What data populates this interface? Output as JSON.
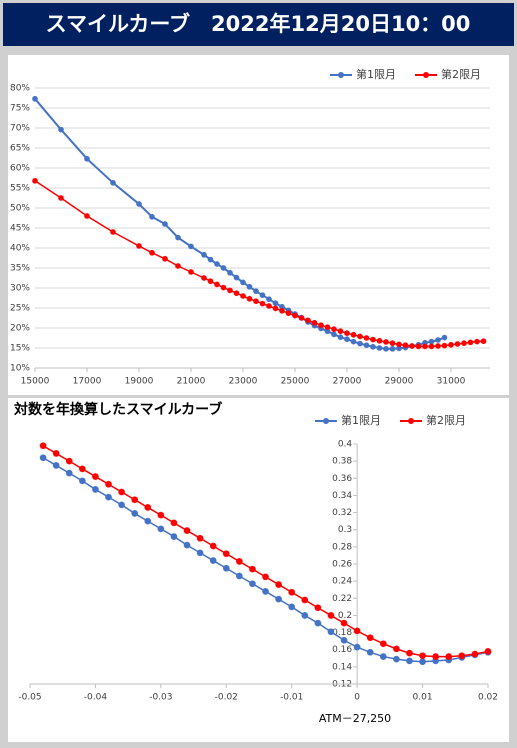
{
  "header": {
    "title": "スマイルカーブ　2022年12月20日10：00"
  },
  "chart_data": [
    {
      "type": "line",
      "legend": "top-right",
      "grid": true,
      "xlim": [
        15000,
        32500
      ],
      "xticks": [
        15000,
        17000,
        19000,
        21000,
        23000,
        25000,
        27000,
        29000,
        31000
      ],
      "ylim": [
        10,
        80
      ],
      "yticks": [
        {
          "value": 10,
          "label": "10%"
        },
        {
          "value": 15,
          "label": "15%"
        },
        {
          "value": 20,
          "label": "20%"
        },
        {
          "value": 25,
          "label": "25%"
        },
        {
          "value": 30,
          "label": "30%"
        },
        {
          "value": 35,
          "label": "35%"
        },
        {
          "value": 40,
          "label": "40%"
        },
        {
          "value": 45,
          "label": "45%"
        },
        {
          "value": 50,
          "label": "50%"
        },
        {
          "value": 55,
          "label": "55%"
        },
        {
          "value": 60,
          "label": "60%"
        },
        {
          "value": 65,
          "label": "65%"
        },
        {
          "value": 70,
          "label": "70%"
        },
        {
          "value": 75,
          "label": "75%"
        },
        {
          "value": 80,
          "label": "80%"
        }
      ],
      "series": [
        {
          "name": "第1限月",
          "color": "#4472c4",
          "x": [
            15000,
            16000,
            17000,
            18000,
            19000,
            19500,
            20000,
            20500,
            21000,
            21500,
            21750,
            22000,
            22250,
            22500,
            22750,
            23000,
            23250,
            23500,
            23750,
            24000,
            24250,
            24500,
            24750,
            25000,
            25250,
            25500,
            25750,
            26000,
            26250,
            26500,
            26750,
            27000,
            27250,
            27500,
            27750,
            28000,
            28250,
            28500,
            28750,
            29000,
            29250,
            29500,
            29750,
            30000,
            30250,
            30500,
            30750
          ],
          "values": [
            77.3,
            69.6,
            62.3,
            56.3,
            51,
            47.8,
            46,
            42.6,
            40.4,
            38.3,
            37.1,
            36,
            35,
            33.8,
            32.6,
            31.4,
            30.3,
            29.2,
            28.2,
            27.2,
            26.2,
            25.3,
            24.4,
            23.5,
            22.6,
            21.5,
            20.6,
            19.9,
            19.2,
            18.4,
            17.7,
            17.2,
            16.6,
            16.1,
            15.7,
            15.3,
            15,
            14.8,
            14.8,
            14.9,
            15.1,
            15.5,
            15.8,
            16.3,
            16.6,
            17,
            17.6
          ]
        },
        {
          "name": "第2限月",
          "color": "#ff0000",
          "x": [
            15000,
            16000,
            17000,
            18000,
            19000,
            19500,
            20000,
            20500,
            21000,
            21500,
            21750,
            22000,
            22250,
            22500,
            22750,
            23000,
            23250,
            23500,
            23750,
            24000,
            24250,
            24500,
            24750,
            25000,
            25250,
            25500,
            25750,
            26000,
            26250,
            26500,
            26750,
            27000,
            27250,
            27500,
            27750,
            28000,
            28250,
            28500,
            28750,
            29000,
            29250,
            29500,
            29750,
            30000,
            30250,
            30500,
            30750,
            31000,
            31250,
            31500,
            31750,
            32000,
            32250
          ],
          "values": [
            56.8,
            52.5,
            48,
            44,
            40.5,
            38.8,
            37.3,
            35.5,
            34,
            32.5,
            31.7,
            30.9,
            30.1,
            29.4,
            28.7,
            28,
            27.3,
            26.7,
            26.1,
            25.5,
            24.9,
            24.3,
            23.7,
            23.1,
            22.5,
            21.9,
            21.3,
            20.7,
            20.2,
            19.7,
            19.2,
            18.7,
            18.3,
            17.9,
            17.5,
            17.1,
            16.8,
            16.5,
            16.2,
            15.9,
            15.7,
            15.5,
            15.4,
            15.4,
            15.4,
            15.5,
            15.6,
            15.8,
            16,
            16.2,
            16.4,
            16.6,
            16.7
          ]
        }
      ]
    },
    {
      "type": "line",
      "title": "対数を年換算したスマイルカーブ",
      "legend": "top-right",
      "grid": false,
      "annotation": "ATM－27,250",
      "xlim": [
        -0.05,
        0.02
      ],
      "xticks": [
        -0.05,
        -0.04,
        -0.03,
        -0.02,
        -0.01,
        0,
        0.01,
        0.02
      ],
      "ylim": [
        0.12,
        0.4
      ],
      "yticks": [
        0.12,
        0.14,
        0.16,
        0.18,
        0.2,
        0.22,
        0.24,
        0.26,
        0.28,
        0.3,
        0.32,
        0.34,
        0.36,
        0.38,
        0.4
      ],
      "series": [
        {
          "name": "第1限月",
          "color": "#4472c4",
          "x": [
            -0.048,
            -0.046,
            -0.044,
            -0.042,
            -0.04,
            -0.038,
            -0.036,
            -0.034,
            -0.032,
            -0.03,
            -0.028,
            -0.026,
            -0.024,
            -0.022,
            -0.02,
            -0.018,
            -0.016,
            -0.014,
            -0.012,
            -0.01,
            -0.008,
            -0.006,
            -0.004,
            -0.002,
            0,
            0.002,
            0.004,
            0.006,
            0.008,
            0.01,
            0.012,
            0.014,
            0.016,
            0.018,
            0.02
          ],
          "values": [
            0.384,
            0.375,
            0.366,
            0.357,
            0.347,
            0.338,
            0.329,
            0.319,
            0.31,
            0.301,
            0.292,
            0.282,
            0.273,
            0.264,
            0.255,
            0.246,
            0.237,
            0.228,
            0.219,
            0.21,
            0.2,
            0.191,
            0.181,
            0.171,
            0.163,
            0.157,
            0.152,
            0.149,
            0.147,
            0.146,
            0.147,
            0.148,
            0.151,
            0.154,
            0.157
          ]
        },
        {
          "name": "第2限月",
          "color": "#ff0000",
          "x": [
            -0.048,
            -0.046,
            -0.044,
            -0.042,
            -0.04,
            -0.038,
            -0.036,
            -0.034,
            -0.032,
            -0.03,
            -0.028,
            -0.026,
            -0.024,
            -0.022,
            -0.02,
            -0.018,
            -0.016,
            -0.014,
            -0.012,
            -0.01,
            -0.008,
            -0.006,
            -0.004,
            -0.002,
            0,
            0.002,
            0.004,
            0.006,
            0.008,
            0.01,
            0.012,
            0.014,
            0.016,
            0.018,
            0.02
          ],
          "values": [
            0.398,
            0.389,
            0.38,
            0.371,
            0.362,
            0.353,
            0.344,
            0.335,
            0.326,
            0.317,
            0.308,
            0.299,
            0.29,
            0.281,
            0.272,
            0.263,
            0.254,
            0.245,
            0.236,
            0.227,
            0.218,
            0.209,
            0.2,
            0.191,
            0.182,
            0.174,
            0.167,
            0.161,
            0.156,
            0.153,
            0.152,
            0.152,
            0.153,
            0.155,
            0.158
          ]
        }
      ]
    }
  ]
}
